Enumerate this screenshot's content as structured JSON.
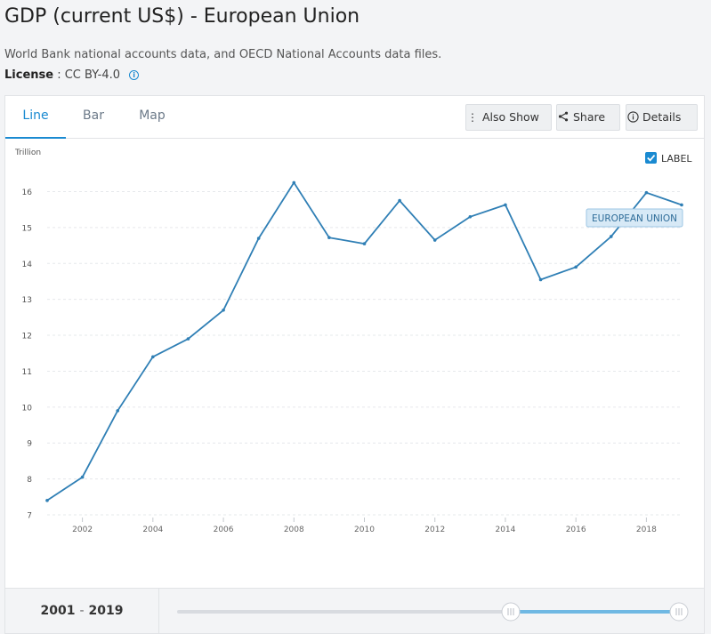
{
  "header": {
    "title": "GDP (current US$) - European Union",
    "source": "World Bank national accounts data, and OECD National Accounts data files.",
    "license_label": "License",
    "license_value": ": CC BY-4.0",
    "info_icon": "info-icon"
  },
  "tabs": [
    {
      "label": "Line",
      "active": true
    },
    {
      "label": "Bar",
      "active": false
    },
    {
      "label": "Map",
      "active": false
    }
  ],
  "toolbar": {
    "also_show": {
      "label": "Also Show",
      "icon": "vertical-dots-icon"
    },
    "share": {
      "label": "Share",
      "icon": "share-icon"
    },
    "details": {
      "label": "Details",
      "icon": "info-circle-icon"
    }
  },
  "label_toggle": {
    "label": "LABEL",
    "checked": true
  },
  "footer": {
    "range_start": "2001",
    "range_sep": "-",
    "range_end": "2019",
    "slider_selected_from": "2015",
    "slider_selected_to": "2019"
  },
  "colors": {
    "accent": "#1a8ad1",
    "line": "#2f7fb5",
    "tag_bg": "#d7e9f6",
    "slider_fill": "#6fb8e3"
  },
  "chart_data": {
    "type": "line",
    "title": "",
    "ylabel": "Trillion",
    "xlabel": "",
    "ylim": [
      7,
      16.5
    ],
    "xlim": [
      2001,
      2019
    ],
    "yticks": [
      7,
      8,
      9,
      10,
      11,
      12,
      13,
      14,
      15,
      16
    ],
    "xticks": [
      2002,
      2004,
      2006,
      2008,
      2010,
      2012,
      2014,
      2016,
      2018
    ],
    "grid": true,
    "series": [
      {
        "name": "EUROPEAN UNION",
        "x": [
          2001,
          2002,
          2003,
          2004,
          2005,
          2006,
          2007,
          2008,
          2009,
          2010,
          2011,
          2012,
          2013,
          2014,
          2015,
          2016,
          2017,
          2018,
          2019
        ],
        "y": [
          7.4,
          8.05,
          9.9,
          11.4,
          11.9,
          12.7,
          14.7,
          16.25,
          14.72,
          14.55,
          15.75,
          14.65,
          15.3,
          15.63,
          13.55,
          13.9,
          14.75,
          15.97,
          15.63
        ]
      }
    ]
  }
}
